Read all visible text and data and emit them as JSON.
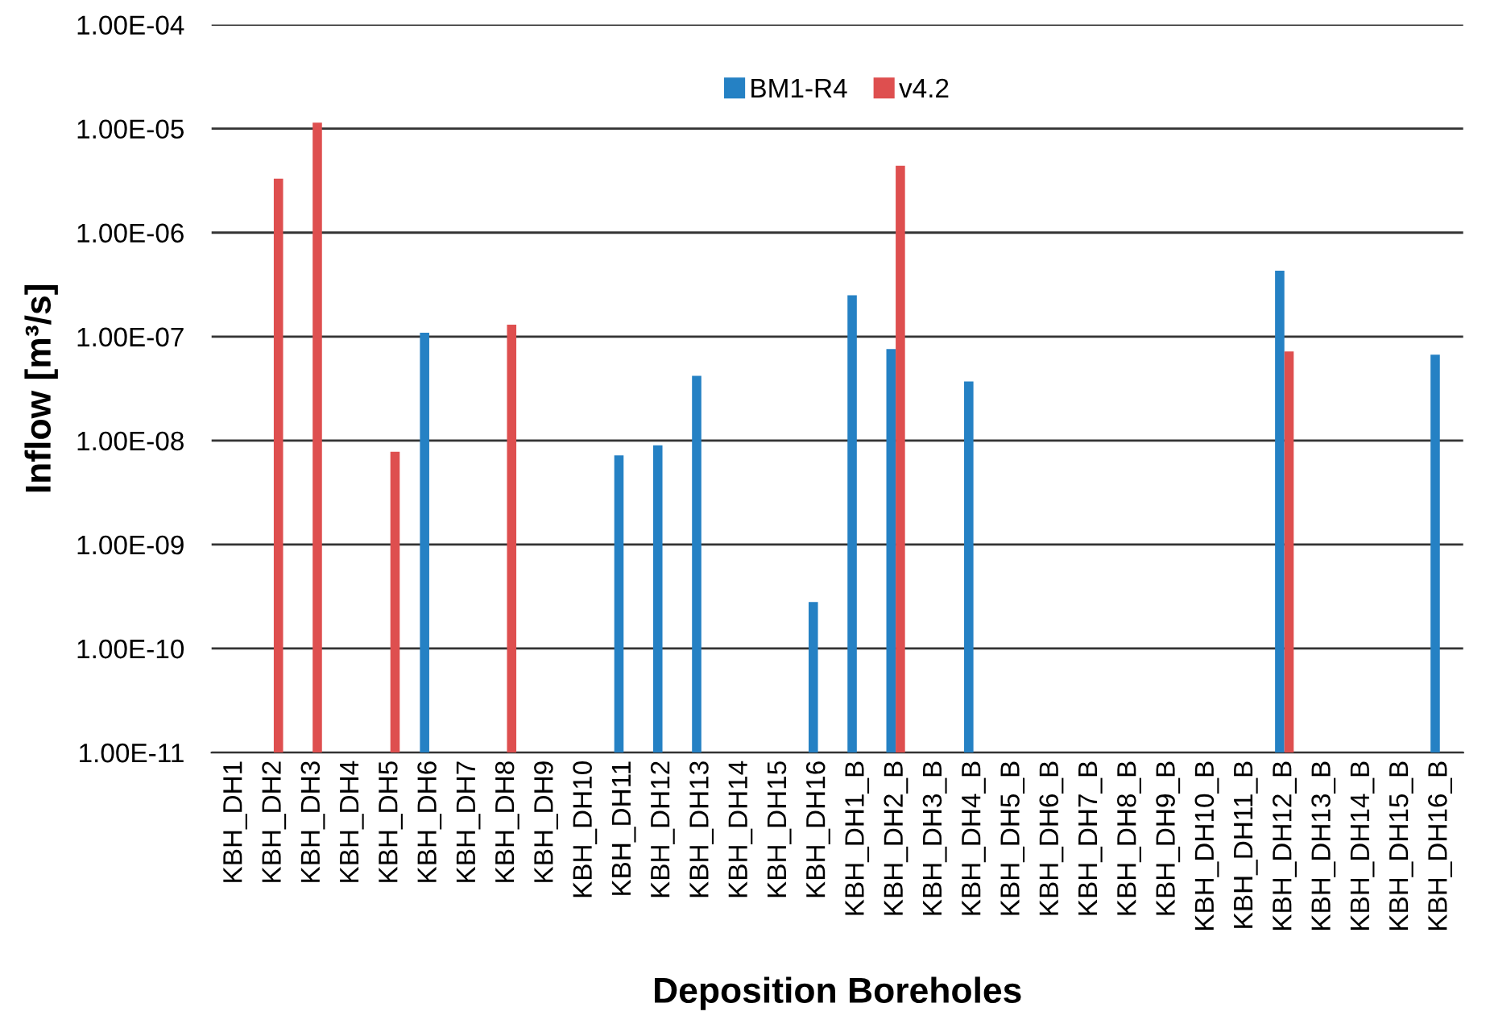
{
  "chart_data": {
    "type": "bar",
    "xlabel": "Deposition Boreholes",
    "ylabel": "Inflow [m³/s]",
    "categories": [
      "KBH_DH1",
      "KBH_DH2",
      "KBH_DH3",
      "KBH_DH4",
      "KBH_DH5",
      "KBH_DH6",
      "KBH_DH7",
      "KBH_DH8",
      "KBH_DH9",
      "KBH_DH10",
      "KBH_DH11",
      "KBH_DH12",
      "KBH_DH13",
      "KBH_DH14",
      "KBH_DH15",
      "KBH_DH16",
      "KBH_DH1_B",
      "KBH_DH2_B",
      "KBH_DH3_B",
      "KBH_DH4_B",
      "KBH_DH5_B",
      "KBH_DH6_B",
      "KBH_DH7_B",
      "KBH_DH8_B",
      "KBH_DH9_B",
      "KBH_DH10_B",
      "KBH_DH11_B",
      "KBH_DH12_B",
      "KBH_DH13_B",
      "KBH_DH14_B",
      "KBH_DH15_B",
      "KBH_DH16_B"
    ],
    "series": [
      {
        "name": "BM1-R4",
        "color": "#2581c4",
        "values": [
          null,
          null,
          null,
          null,
          null,
          1.09e-07,
          null,
          null,
          null,
          null,
          7.2e-09,
          9e-09,
          4.2e-08,
          null,
          null,
          2.8e-10,
          2.5e-07,
          7.6e-08,
          null,
          3.7e-08,
          null,
          null,
          null,
          null,
          null,
          null,
          null,
          4.3e-07,
          null,
          null,
          null,
          6.7e-08
        ]
      },
      {
        "name": "v4.2",
        "color": "#de4f4f",
        "values": [
          null,
          3.3e-06,
          1.14e-05,
          null,
          7.8e-09,
          null,
          null,
          1.3e-07,
          null,
          null,
          null,
          null,
          null,
          null,
          null,
          null,
          null,
          4.4e-06,
          null,
          null,
          null,
          null,
          null,
          null,
          null,
          null,
          null,
          7.2e-08,
          null,
          null,
          null,
          null
        ]
      }
    ],
    "log": "y",
    "ylim": [
      1e-11,
      0.0001
    ],
    "yticks": [
      {
        "value": 1e-11,
        "label": "1.00E-11"
      },
      {
        "value": 1e-10,
        "label": "1.00E-10"
      },
      {
        "value": 1e-09,
        "label": "1.00E-09"
      },
      {
        "value": 1e-08,
        "label": "1.00E-08"
      },
      {
        "value": 1e-07,
        "label": "1.00E-07"
      },
      {
        "value": 1e-06,
        "label": "1.00E-06"
      },
      {
        "value": 1e-05,
        "label": "1.00E-05"
      },
      {
        "value": 0.0001,
        "label": "1.00E-04"
      }
    ],
    "grid": "y",
    "legend": "top"
  }
}
